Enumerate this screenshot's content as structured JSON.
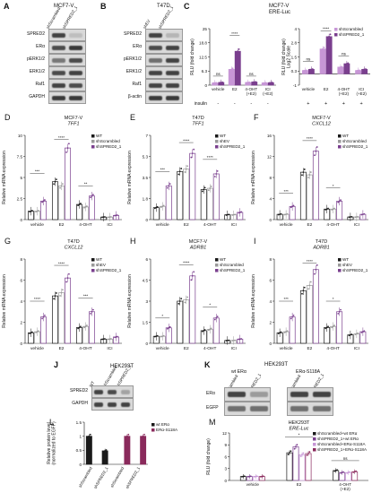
{
  "panels": {
    "A": {
      "label": "A",
      "cell": "MCF7-V",
      "cols": [
        "shScrambled",
        "shSPRED2_1"
      ],
      "rows": [
        "SPRED2",
        "ERα",
        "pERK1/2",
        "ERK1/2",
        "Raf1",
        "GAPDH"
      ]
    },
    "B": {
      "label": "B",
      "cell": "T47D",
      "cols": [
        "shEV",
        "shSPRED2_1"
      ],
      "rows": [
        "SPRED2",
        "ERα",
        "pERK1/2",
        "ERK1/2",
        "Raf1",
        "β-actin"
      ]
    },
    "C": {
      "label": "C",
      "cell": "MCF7-V",
      "reporter": "ERE-Luc",
      "ylabel1": "RLU (fold change)",
      "ylabel2": "RLU (fold change)\nLog2 Scale",
      "insulin": "insulin",
      "plus": "+",
      "minus": "-",
      "legend": [
        "shScrambled",
        "shSPRED2_1"
      ]
    },
    "D": {
      "label": "D",
      "cell": "MCF7-V",
      "gene": "TFF1",
      "legend": [
        "WT",
        "shScrambled",
        "shSPRED2_1"
      ]
    },
    "E": {
      "label": "E",
      "cell": "T47D",
      "gene": "TFF1",
      "legend": [
        "WT",
        "shEV",
        "shSPRED2_1"
      ]
    },
    "F": {
      "label": "F",
      "cell": "MCF7-V",
      "gene": "CXCL12",
      "legend": [
        "WT",
        "shScrambled",
        "shSPRED2_1"
      ]
    },
    "G": {
      "label": "G",
      "cell": "T47D",
      "gene": "CXCL12",
      "legend": [
        "WT",
        "shEV",
        "shSPRED2_1"
      ]
    },
    "H": {
      "label": "H",
      "cell": "MCF7-V",
      "gene": "ADRB1",
      "legend": [
        "WT",
        "shScrambled",
        "shSPRED2_1"
      ]
    },
    "I": {
      "label": "I",
      "cell": "T47D",
      "gene": "ADRB1",
      "legend": [
        "WT",
        "shEV",
        "shSPRED2_1"
      ]
    },
    "J": {
      "label": "J",
      "cell": "HEK293T",
      "cols": [
        "WT",
        "shScrambled",
        "shSPRED2_1"
      ],
      "rows": [
        "SPRED2",
        "GAPDH"
      ]
    },
    "K": {
      "label": "K",
      "cell": "HEK293T",
      "groups": [
        "wt ERα",
        "ERα-S118A"
      ],
      "cols": [
        "shScrambled",
        "shSPRED2_1",
        "shScrambled",
        "shSPRED2_1"
      ],
      "rows": [
        "ERα",
        "EGFP"
      ]
    },
    "L": {
      "label": "L",
      "ylabel": "Relative protein level\n(normalized to EGFP)",
      "legend": [
        "wt ERα",
        "ERα-S118A"
      ],
      "cols": [
        "shScrambled",
        "shSPRED2_1",
        "shScrambled",
        "shSPRED2_1"
      ]
    },
    "M": {
      "label": "M",
      "cell": "HEK293T",
      "reporter": "ERE-Luc",
      "ylabel": "RLU (fold change)",
      "legend": [
        "shScrambled+wt ERα",
        "shSPRED2_1+wt ERα",
        "shScrambled+ERα-S118A",
        "shSPRED2_1+ERα-S118A"
      ]
    }
  },
  "common": {
    "ylabel_mrna": "Relative mRNA expression",
    "treatments": [
      "vehicle",
      "E2",
      "4-OHT",
      "ICI"
    ],
    "treatments_c": [
      "vehicle",
      "E2",
      "4-OHT\n(+E2)",
      "ICI\n(+E2)"
    ],
    "treatments_m": [
      "vehicle",
      "E2",
      "4-OHT\n(+E2)"
    ],
    "sig": [
      "ns",
      "*",
      "**",
      "***",
      "****"
    ]
  },
  "colors": {
    "black": "#1a1a1a",
    "grey": "#9a9a9a",
    "purple": "#7a3f8e",
    "lightpurple": "#c796d6",
    "magenta": "#8a2a5c"
  },
  "chart_data": [
    {
      "panel": "C-left",
      "type": "bar",
      "categories": [
        "vehicle",
        "E2",
        "4-OHT (+E2)",
        "ICI (+E2)"
      ],
      "series": [
        {
          "name": "shScrambled",
          "values": [
            1,
            7,
            1.2,
            1
          ]
        },
        {
          "name": "shSPRED2_1",
          "values": [
            1.2,
            15,
            1.4,
            1.1
          ]
        }
      ],
      "ylim": [
        0,
        25
      ]
    },
    {
      "panel": "C-right",
      "type": "bar",
      "categories": [
        "vehicle",
        "E2",
        "4-OHT (+E2)",
        "ICI (+E2)"
      ],
      "series": [
        {
          "name": "shScrambled",
          "values": [
            0.3,
            2.2,
            0.6,
            0.3
          ]
        },
        {
          "name": "shSPRED2_1",
          "values": [
            0.4,
            3.3,
            0.9,
            0.4
          ]
        }
      ],
      "ylim": [
        -1,
        4
      ]
    },
    {
      "panel": "D",
      "type": "bar",
      "categories": [
        "vehicle",
        "E2",
        "4-OHT",
        "ICI"
      ],
      "series": [
        {
          "name": "WT",
          "values": [
            1,
            4.5,
            1.8,
            0.3
          ]
        },
        {
          "name": "shScrambled",
          "values": [
            1,
            4,
            1.5,
            0.3
          ]
        },
        {
          "name": "shSPRED2_1",
          "values": [
            2.2,
            8.5,
            2.8,
            0.5
          ]
        }
      ],
      "ylim": [
        0,
        10
      ]
    },
    {
      "panel": "E",
      "type": "bar",
      "categories": [
        "vehicle",
        "E2",
        "4-OHT",
        "ICI"
      ],
      "series": [
        {
          "name": "WT",
          "values": [
            1,
            4,
            2.5,
            0.4
          ]
        },
        {
          "name": "shEV",
          "values": [
            1.1,
            4.2,
            2.6,
            0.4
          ]
        },
        {
          "name": "shSPRED2_1",
          "values": [
            2.8,
            5.5,
            3.8,
            0.6
          ]
        }
      ],
      "ylim": [
        0,
        7
      ]
    },
    {
      "panel": "F",
      "type": "bar",
      "categories": [
        "vehicle",
        "E2",
        "4-OHT",
        "ICI"
      ],
      "series": [
        {
          "name": "WT",
          "values": [
            1,
            9,
            2,
            0.5
          ]
        },
        {
          "name": "shScrambled",
          "values": [
            1,
            8.5,
            2,
            0.5
          ]
        },
        {
          "name": "shSPRED2_1",
          "values": [
            2.5,
            13,
            3.5,
            1
          ]
        }
      ],
      "ylim": [
        0,
        16
      ]
    },
    {
      "panel": "G",
      "type": "bar",
      "categories": [
        "vehicle",
        "E2",
        "4-OHT",
        "ICI"
      ],
      "series": [
        {
          "name": "WT",
          "values": [
            1,
            4.5,
            1.5,
            0.4
          ]
        },
        {
          "name": "shEV",
          "values": [
            1.1,
            4.8,
            1.6,
            0.4
          ]
        },
        {
          "name": "shSPRED2_1",
          "values": [
            2.5,
            6.2,
            3,
            0.6
          ]
        }
      ],
      "ylim": [
        0,
        8
      ]
    },
    {
      "panel": "H",
      "type": "bar",
      "categories": [
        "vehicle",
        "E2",
        "4-OHT",
        "ICI"
      ],
      "series": [
        {
          "name": "WT",
          "values": [
            0.5,
            3,
            0.9,
            0.2
          ]
        },
        {
          "name": "shScrambled",
          "values": [
            0.5,
            3.1,
            1,
            0.2
          ]
        },
        {
          "name": "shSPRED2_1",
          "values": [
            1.1,
            4.8,
            1.8,
            0.3
          ]
        }
      ],
      "ylim": [
        0,
        6
      ]
    },
    {
      "panel": "I",
      "type": "bar",
      "categories": [
        "vehicle",
        "E2",
        "4-OHT",
        "ICI"
      ],
      "series": [
        {
          "name": "WT",
          "values": [
            1,
            5,
            1.5,
            0.8
          ]
        },
        {
          "name": "shEV",
          "values": [
            1.1,
            5.5,
            1.6,
            0.9
          ]
        },
        {
          "name": "shSPRED2_1",
          "values": [
            2.5,
            7,
            3,
            1.1
          ]
        }
      ],
      "ylim": [
        0,
        8
      ]
    },
    {
      "panel": "L",
      "type": "bar",
      "categories": [
        "shScrambled",
        "shSPRED2_1",
        "shScrambled",
        "shSPRED2_1"
      ],
      "series": [
        {
          "name": "wt ERα",
          "values": [
            1,
            0.48,
            null,
            null
          ]
        },
        {
          "name": "ERα-S118A",
          "values": [
            null,
            null,
            1,
            1
          ]
        }
      ],
      "ylim": [
        0,
        1.5
      ]
    },
    {
      "panel": "M",
      "type": "bar",
      "categories": [
        "vehicle",
        "E2",
        "4-OHT (+E2)"
      ],
      "series": [
        {
          "name": "shScrambled+wt ERα",
          "values": [
            1,
            7,
            2.5
          ]
        },
        {
          "name": "shSPRED2_1+wt ERα",
          "values": [
            1,
            8.5,
            2
          ]
        },
        {
          "name": "shScrambled+ERα-S118A",
          "values": [
            1,
            6.5,
            2
          ]
        },
        {
          "name": "shSPRED2_1+ERα-S118A",
          "values": [
            1,
            6.8,
            2.2
          ]
        }
      ],
      "ylim": [
        0,
        12
      ]
    }
  ]
}
